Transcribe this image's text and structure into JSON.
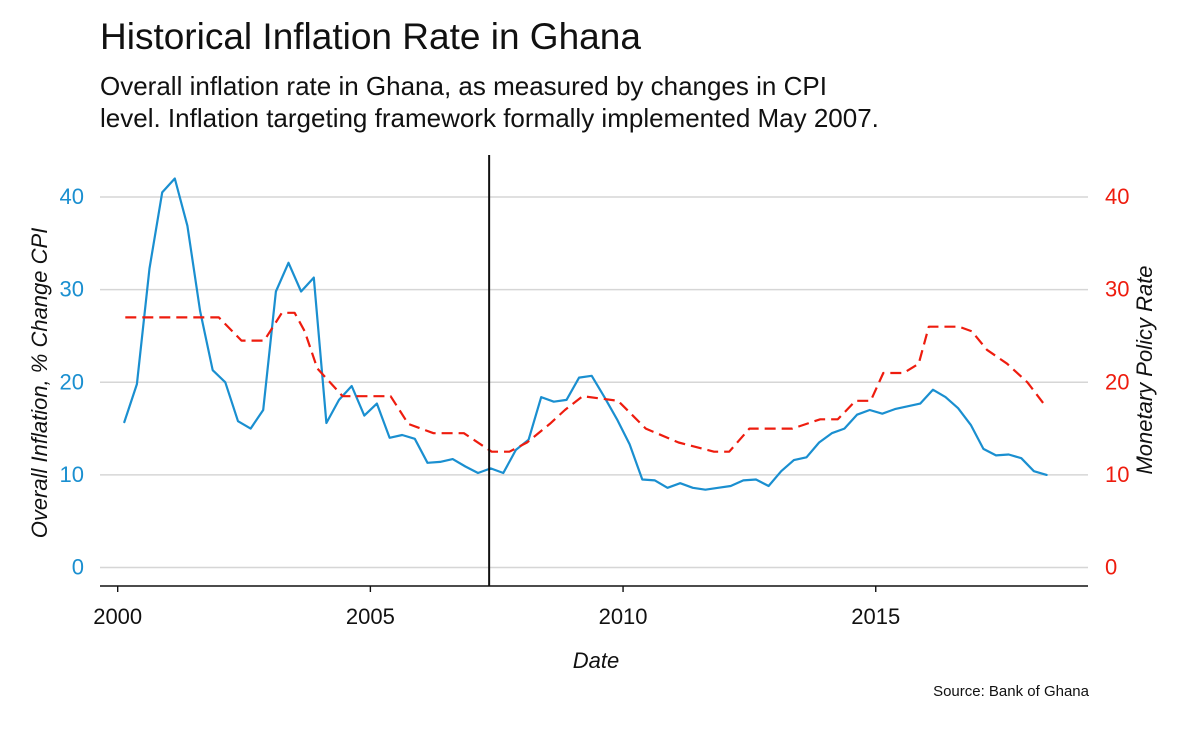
{
  "title": "Historical Inflation Rate in Ghana",
  "subtitle_lines": [
    "Overall inflation rate in Ghana, as measured by changes in CPI",
    "level. Inflation targeting framework formally implemented May 2007."
  ],
  "source": "Source: Bank of Ghana",
  "colors": {
    "inflation": "#1a8fd0",
    "policy": "#ee1c0e",
    "grid": "#d6d6d6",
    "axis": "#111111"
  },
  "chart_data": {
    "type": "line",
    "title": "Historical Inflation Rate in Ghana",
    "xlabel": "Date",
    "ylabel_left": "Overall Inflation, % Change CPI",
    "ylabel_right": "Monetary Policy Rate",
    "xlim": [
      1999.65,
      2019.2
    ],
    "ylim": [
      -2,
      44
    ],
    "x_ticks": [
      2000,
      2005,
      2010,
      2015
    ],
    "x_tick_labels": [
      "2000",
      "2005",
      "2010",
      "2015"
    ],
    "y_ticks": [
      0,
      10,
      20,
      30,
      40
    ],
    "y_tick_labels": [
      "0",
      "10",
      "20",
      "30",
      "40"
    ],
    "grid": true,
    "vertical_marker": {
      "x": 2007.35,
      "label": "Inflation targeting implemented (May 2007)"
    },
    "series": [
      {
        "name": "Overall Inflation, % Change CPI",
        "axis": "left",
        "style": "solid",
        "x": [
          2000.13,
          2000.38,
          2000.63,
          2000.88,
          2001.13,
          2001.38,
          2001.63,
          2001.88,
          2002.13,
          2002.38,
          2002.63,
          2002.88,
          2003.13,
          2003.38,
          2003.63,
          2003.88,
          2004.13,
          2004.38,
          2004.63,
          2004.88,
          2005.13,
          2005.38,
          2005.63,
          2005.88,
          2006.13,
          2006.38,
          2006.63,
          2006.88,
          2007.13,
          2007.38,
          2007.63,
          2007.88,
          2008.13,
          2008.38,
          2008.63,
          2008.88,
          2009.13,
          2009.38,
          2009.63,
          2009.88,
          2010.13,
          2010.38,
          2010.63,
          2010.88,
          2011.13,
          2011.38,
          2011.63,
          2011.88,
          2012.13,
          2012.38,
          2012.63,
          2012.88,
          2013.13,
          2013.38,
          2013.63,
          2013.88,
          2014.13,
          2014.38,
          2014.63,
          2014.88,
          2015.13,
          2015.38,
          2015.63,
          2015.88,
          2016.13,
          2016.38,
          2016.63,
          2016.88,
          2017.13,
          2017.38,
          2017.63,
          2017.88,
          2018.13,
          2018.38
        ],
        "values": [
          15.7,
          19.8,
          32.3,
          40.5,
          42.0,
          36.9,
          27.7,
          21.3,
          20.0,
          15.8,
          15.0,
          17.0,
          29.8,
          32.9,
          29.8,
          31.3,
          15.6,
          18.1,
          19.6,
          16.4,
          17.7,
          14.0,
          14.3,
          13.9,
          11.3,
          11.4,
          11.7,
          10.9,
          10.2,
          10.7,
          10.2,
          12.7,
          13.8,
          18.4,
          17.9,
          18.1,
          20.5,
          20.7,
          18.4,
          16.0,
          13.3,
          9.5,
          9.4,
          8.6,
          9.1,
          8.6,
          8.4,
          8.6,
          8.8,
          9.4,
          9.5,
          8.8,
          10.4,
          11.6,
          11.9,
          13.5,
          14.5,
          15.0,
          16.5,
          17.0,
          16.6,
          17.1,
          17.4,
          17.7,
          19.2,
          18.4,
          17.2,
          15.4,
          12.8,
          12.1,
          12.2,
          11.8,
          10.4,
          10.0
        ]
      },
      {
        "name": "Monetary Policy Rate",
        "axis": "right",
        "style": "dashed",
        "x": [
          2000.15,
          2002.0,
          2002.45,
          2002.9,
          2003.25,
          2003.5,
          2003.7,
          2003.95,
          2004.45,
          2005.4,
          2005.75,
          2006.25,
          2006.85,
          2007.4,
          2007.75,
          2008.1,
          2008.55,
          2008.85,
          2009.2,
          2009.9,
          2010.45,
          2011.1,
          2011.8,
          2012.1,
          2012.5,
          2013.35,
          2013.9,
          2014.25,
          2014.6,
          2014.9,
          2015.15,
          2015.55,
          2015.85,
          2016.05,
          2016.65,
          2016.9,
          2017.2,
          2017.6,
          2018.0,
          2018.35
        ],
        "values": [
          27.0,
          27.0,
          24.5,
          24.5,
          27.5,
          27.5,
          25.5,
          21.5,
          18.5,
          18.5,
          15.5,
          14.5,
          14.5,
          12.5,
          12.5,
          13.5,
          15.5,
          17.0,
          18.5,
          18.0,
          15.0,
          13.5,
          12.5,
          12.5,
          15.0,
          15.0,
          16.0,
          16.0,
          18.0,
          18.0,
          21.0,
          21.0,
          22.0,
          26.0,
          26.0,
          25.5,
          23.5,
          22.0,
          20.0,
          17.5
        ]
      }
    ]
  }
}
